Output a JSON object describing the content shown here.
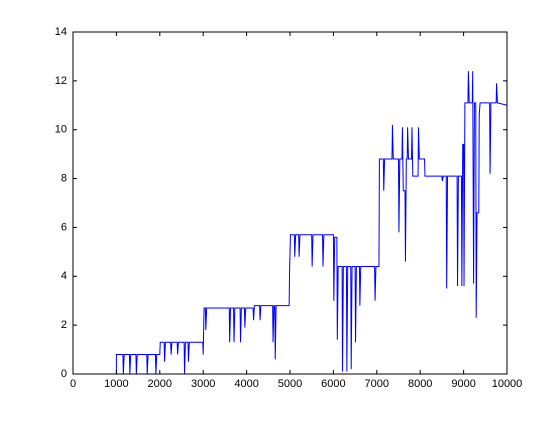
{
  "chart_data": {
    "type": "line",
    "x": [
      0,
      1000,
      1000,
      1150,
      1160,
      1180,
      1300,
      1310,
      1330,
      1450,
      1460,
      1480,
      1700,
      1710,
      1730,
      1900,
      1910,
      1930,
      2000,
      2010,
      2100,
      2110,
      2130,
      2250,
      2260,
      2280,
      2400,
      2410,
      2430,
      2560,
      2570,
      2590,
      2650,
      2660,
      2680,
      2990,
      3000,
      3020,
      3050,
      3060,
      3080,
      3600,
      3610,
      3630,
      3700,
      3710,
      3730,
      3850,
      3860,
      3880,
      3950,
      3960,
      3980,
      4150,
      4160,
      4180,
      4300,
      4310,
      4330,
      4600,
      4610,
      4630,
      4650,
      4660,
      4680,
      4980,
      4990,
      5010,
      5100,
      5110,
      5130,
      5200,
      5210,
      5230,
      5500,
      5510,
      5530,
      5750,
      5760,
      5780,
      6000,
      6010,
      6030,
      6080,
      6090,
      6110,
      6200,
      6210,
      6230,
      6300,
      6310,
      6330,
      6400,
      6410,
      6430,
      6500,
      6510,
      6530,
      6600,
      6610,
      6630,
      6950,
      6960,
      6980,
      7050,
      7060,
      7150,
      7160,
      7180,
      7350,
      7360,
      7380,
      7500,
      7510,
      7530,
      7580,
      7590,
      7610,
      7650,
      7660,
      7680,
      7700,
      7710,
      7730,
      7800,
      7810,
      7830,
      7950,
      7960,
      7980,
      8100,
      8110,
      8500,
      8510,
      8530,
      8600,
      8610,
      8630,
      8850,
      8860,
      8880,
      8950,
      8960,
      8980,
      9000,
      9010,
      9030,
      9100,
      9110,
      9130,
      9200,
      9210,
      9230,
      9250,
      9280,
      9290,
      9310,
      9350,
      9360,
      9380,
      9600,
      9610,
      9630,
      9750,
      9760,
      9780,
      10000
    ],
    "series": [
      {
        "color": "#0000ff",
        "values": [
          0,
          0,
          0.8,
          0.8,
          0,
          0.8,
          0.8,
          0,
          0.8,
          0.8,
          0,
          0.8,
          0.8,
          0,
          0.8,
          0.8,
          0,
          0.8,
          0.8,
          1.3,
          1.3,
          0.5,
          1.3,
          1.3,
          0.8,
          1.3,
          1.3,
          0.8,
          1.3,
          1.3,
          0,
          1.3,
          1.3,
          0.5,
          1.3,
          1.3,
          0.8,
          2.7,
          2.7,
          1.8,
          2.7,
          2.7,
          1.3,
          2.7,
          2.7,
          1.3,
          2.7,
          2.7,
          1.3,
          2.7,
          2.7,
          1.9,
          2.7,
          2.7,
          2.2,
          2.8,
          2.8,
          2.2,
          2.8,
          2.8,
          1.3,
          2.8,
          2.8,
          0.6,
          2.8,
          2.8,
          4.2,
          5.7,
          5.7,
          4.8,
          5.7,
          5.7,
          4.8,
          5.7,
          5.7,
          4.4,
          5.7,
          5.7,
          4.4,
          5.7,
          5.7,
          3.0,
          5.6,
          5.6,
          1.4,
          4.4,
          4.4,
          0.1,
          4.4,
          4.4,
          0.1,
          4.4,
          4.4,
          0.2,
          4.4,
          4.4,
          1.3,
          4.4,
          4.4,
          2.8,
          4.4,
          4.4,
          3.0,
          4.4,
          4.4,
          8.8,
          8.8,
          7.5,
          8.8,
          8.8,
          10.2,
          8.8,
          8.8,
          5.8,
          8.8,
          8.8,
          10.1,
          7.5,
          7.5,
          4.6,
          8.8,
          8.8,
          10.1,
          8.8,
          8.8,
          10.1,
          8.1,
          8.1,
          10.1,
          8.8,
          8.8,
          8.1,
          8.1,
          7.9,
          8.1,
          8.1,
          3.5,
          8.1,
          8.1,
          3.6,
          8.1,
          8.1,
          3.6,
          9.4,
          9.4,
          3.6,
          11.1,
          11.1,
          12.4,
          11.1,
          11.1,
          12.4,
          3.7,
          11.1,
          11.1,
          2.3,
          6.6,
          6.6,
          10.6,
          11.1,
          11.1,
          8.2,
          11.1,
          11.1,
          11.9,
          11.1,
          11.0
        ]
      }
    ],
    "xlim": [
      0,
      10000
    ],
    "ylim": [
      0,
      14
    ],
    "xticks": [
      0,
      1000,
      2000,
      3000,
      4000,
      5000,
      6000,
      7000,
      8000,
      9000,
      10000
    ],
    "yticks": [
      0,
      2,
      4,
      6,
      8,
      10,
      12,
      14
    ]
  }
}
